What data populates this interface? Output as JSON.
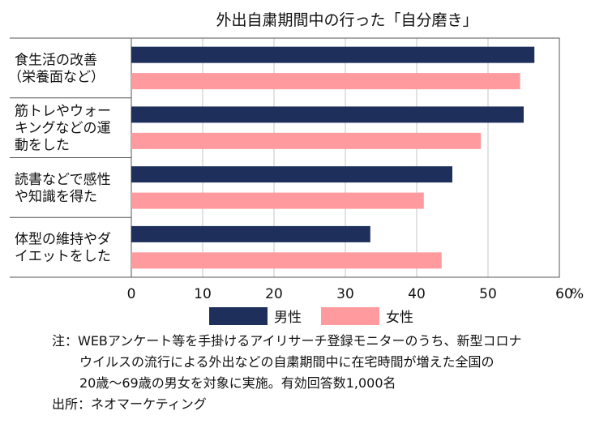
{
  "chart_data": {
    "type": "bar",
    "orientation": "horizontal",
    "title": "外出自粛期間中の行った「自分磨き」",
    "categories": [
      [
        "食生活の改善",
        "（栄養面など）"
      ],
      [
        "筋トレやウォー",
        "キングなどの運",
        "動をした"
      ],
      [
        "読書などで感性",
        "や知識を得た"
      ],
      [
        "体型の維持やダ",
        "イエットをした"
      ]
    ],
    "series": [
      {
        "name": "男性",
        "color": "#1f2f5c",
        "values": [
          56.5,
          55.0,
          45.0,
          33.5
        ]
      },
      {
        "name": "女性",
        "color": "#ff9a9e",
        "values": [
          54.5,
          49.0,
          41.0,
          43.5
        ]
      }
    ],
    "xlim": [
      0,
      60
    ],
    "xticks": [
      "0",
      "10",
      "20",
      "30",
      "40",
      "50",
      "60"
    ],
    "unit": "%",
    "grid": true,
    "legend": "bottom"
  },
  "notes": {
    "line1": "注：WEBアンケート等を手掛けるアイリサーチ登録モニターのうち、新型コロナ",
    "line2": "ウイルスの流行による外出などの自粛期間中に在宅時間が増えた全国の",
    "line3": "20歳〜69歳の男女を対象に実施。有効回答数1,000名",
    "source": "出所：ネオマーケティング"
  }
}
